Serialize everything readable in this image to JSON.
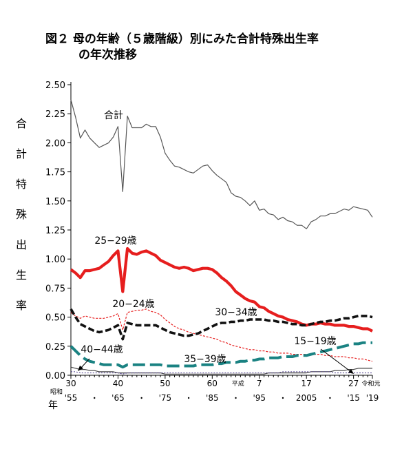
{
  "title": {
    "line1": "図２ 母の年齢（５歳階級）別にみた合計特殊出生率",
    "line2": "の年次推移"
  },
  "chart_data": {
    "type": "line",
    "title": "図２ 母の年齢（５歳階級）別にみた合計特殊出生率の年次推移",
    "ylabel": "合計特殊出生率",
    "ylabel_chars": [
      "合",
      "計",
      "特",
      "殊",
      "出",
      "生",
      "率"
    ],
    "xlabel": "年",
    "ylim": [
      0,
      2.5
    ],
    "xlim": [
      1955,
      2019
    ],
    "y_ticks": [
      "0.00",
      "0.25",
      "0.50",
      "0.75",
      "1.00",
      "1.25",
      "1.50",
      "1.75",
      "2.00",
      "2.25",
      "2.50"
    ],
    "x_ticks": [
      {
        "year": 1955,
        "era": "昭和",
        "top": "30",
        "bottom": "'55"
      },
      {
        "year": 1965,
        "era": "",
        "top": "40",
        "bottom": "'65"
      },
      {
        "year": 1975,
        "era": "",
        "top": "50",
        "bottom": "'75"
      },
      {
        "year": 1985,
        "era": "",
        "top": "60",
        "bottom": "'85"
      },
      {
        "year": 1995,
        "era": "平成",
        "top": "7",
        "bottom": "'95"
      },
      {
        "year": 2005,
        "era": "",
        "top": "17",
        "bottom": "2005"
      },
      {
        "year": 2015,
        "era": "",
        "top": "27",
        "bottom": "'15"
      },
      {
        "year": 2019,
        "era": "令和元",
        "top": "",
        "bottom": "'19"
      }
    ],
    "x": [
      1955,
      1956,
      1957,
      1958,
      1959,
      1960,
      1961,
      1962,
      1963,
      1964,
      1965,
      1966,
      1967,
      1968,
      1969,
      1970,
      1971,
      1972,
      1973,
      1974,
      1975,
      1976,
      1977,
      1978,
      1979,
      1980,
      1981,
      1982,
      1983,
      1984,
      1985,
      1986,
      1987,
      1988,
      1989,
      1990,
      1991,
      1992,
      1993,
      1994,
      1995,
      1996,
      1997,
      1998,
      1999,
      2000,
      2001,
      2002,
      2003,
      2004,
      2005,
      2006,
      2007,
      2008,
      2009,
      2010,
      2011,
      2012,
      2013,
      2014,
      2015,
      2016,
      2017,
      2018,
      2019
    ],
    "series": [
      {
        "name": "合計",
        "label": "合計",
        "color": "#555555",
        "values": [
          2.37,
          2.22,
          2.04,
          2.11,
          2.04,
          2.0,
          1.96,
          1.98,
          2.0,
          2.05,
          2.14,
          1.58,
          2.23,
          2.13,
          2.13,
          2.13,
          2.16,
          2.14,
          2.14,
          2.05,
          1.91,
          1.85,
          1.8,
          1.79,
          1.77,
          1.75,
          1.74,
          1.77,
          1.8,
          1.81,
          1.76,
          1.72,
          1.69,
          1.66,
          1.57,
          1.54,
          1.53,
          1.5,
          1.46,
          1.5,
          1.42,
          1.43,
          1.39,
          1.38,
          1.34,
          1.36,
          1.33,
          1.32,
          1.29,
          1.29,
          1.26,
          1.32,
          1.34,
          1.37,
          1.37,
          1.39,
          1.39,
          1.41,
          1.43,
          1.42,
          1.45,
          1.44,
          1.43,
          1.42,
          1.36
        ]
      },
      {
        "name": "25-29歳",
        "label": "25−29歳",
        "color": "#e61e1e",
        "values": [
          0.91,
          0.88,
          0.84,
          0.9,
          0.9,
          0.91,
          0.92,
          0.95,
          0.98,
          1.03,
          1.07,
          0.72,
          1.09,
          1.05,
          1.04,
          1.06,
          1.07,
          1.05,
          1.03,
          0.99,
          0.97,
          0.95,
          0.93,
          0.92,
          0.93,
          0.92,
          0.9,
          0.91,
          0.92,
          0.92,
          0.91,
          0.88,
          0.84,
          0.81,
          0.77,
          0.72,
          0.69,
          0.66,
          0.64,
          0.63,
          0.59,
          0.58,
          0.55,
          0.53,
          0.51,
          0.5,
          0.48,
          0.47,
          0.46,
          0.44,
          0.43,
          0.44,
          0.44,
          0.45,
          0.44,
          0.44,
          0.43,
          0.43,
          0.43,
          0.42,
          0.42,
          0.41,
          0.4,
          0.4,
          0.38
        ]
      },
      {
        "name": "20-24歳",
        "label": "20−24歳",
        "color": "#e61e1e",
        "values": [
          0.54,
          0.51,
          0.49,
          0.51,
          0.5,
          0.49,
          0.49,
          0.49,
          0.5,
          0.51,
          0.53,
          0.39,
          0.54,
          0.55,
          0.56,
          0.56,
          0.57,
          0.55,
          0.54,
          0.52,
          0.48,
          0.45,
          0.42,
          0.4,
          0.39,
          0.37,
          0.36,
          0.35,
          0.34,
          0.33,
          0.32,
          0.31,
          0.29,
          0.28,
          0.26,
          0.25,
          0.24,
          0.23,
          0.22,
          0.22,
          0.21,
          0.21,
          0.2,
          0.2,
          0.19,
          0.19,
          0.19,
          0.18,
          0.18,
          0.18,
          0.18,
          0.18,
          0.18,
          0.18,
          0.17,
          0.17,
          0.16,
          0.16,
          0.16,
          0.15,
          0.15,
          0.14,
          0.14,
          0.13,
          0.12
        ]
      },
      {
        "name": "30-34歳",
        "label": "30−34歳",
        "color": "#111111",
        "values": [
          0.57,
          0.5,
          0.44,
          0.42,
          0.4,
          0.38,
          0.37,
          0.38,
          0.39,
          0.41,
          0.43,
          0.31,
          0.45,
          0.44,
          0.43,
          0.43,
          0.43,
          0.43,
          0.43,
          0.41,
          0.39,
          0.37,
          0.36,
          0.35,
          0.34,
          0.34,
          0.35,
          0.36,
          0.38,
          0.4,
          0.42,
          0.44,
          0.45,
          0.45,
          0.46,
          0.46,
          0.47,
          0.47,
          0.48,
          0.48,
          0.48,
          0.48,
          0.47,
          0.47,
          0.46,
          0.46,
          0.45,
          0.44,
          0.44,
          0.43,
          0.43,
          0.44,
          0.45,
          0.46,
          0.46,
          0.47,
          0.47,
          0.48,
          0.49,
          0.49,
          0.5,
          0.51,
          0.51,
          0.51,
          0.5
        ]
      },
      {
        "name": "35-39歳",
        "label": "35−39歳",
        "color": "#1a8282",
        "values": [
          0.25,
          0.21,
          0.17,
          0.14,
          0.12,
          0.11,
          0.1,
          0.09,
          0.09,
          0.09,
          0.09,
          0.07,
          0.09,
          0.09,
          0.09,
          0.09,
          0.09,
          0.09,
          0.09,
          0.09,
          0.08,
          0.08,
          0.08,
          0.08,
          0.08,
          0.08,
          0.08,
          0.09,
          0.09,
          0.09,
          0.09,
          0.1,
          0.1,
          0.11,
          0.11,
          0.11,
          0.12,
          0.12,
          0.13,
          0.13,
          0.14,
          0.14,
          0.15,
          0.15,
          0.15,
          0.16,
          0.16,
          0.16,
          0.17,
          0.17,
          0.17,
          0.18,
          0.19,
          0.2,
          0.21,
          0.22,
          0.23,
          0.24,
          0.25,
          0.26,
          0.27,
          0.27,
          0.28,
          0.28,
          0.28
        ]
      },
      {
        "name": "40-44歳",
        "label": "40−44歳",
        "color": "#444444",
        "values": [
          0.07,
          0.06,
          0.05,
          0.05,
          0.04,
          0.04,
          0.03,
          0.03,
          0.03,
          0.03,
          0.02,
          0.02,
          0.02,
          0.02,
          0.02,
          0.02,
          0.02,
          0.02,
          0.02,
          0.02,
          0.01,
          0.01,
          0.01,
          0.01,
          0.01,
          0.01,
          0.01,
          0.01,
          0.01,
          0.01,
          0.01,
          0.01,
          0.01,
          0.01,
          0.01,
          0.01,
          0.01,
          0.01,
          0.01,
          0.01,
          0.01,
          0.01,
          0.02,
          0.02,
          0.02,
          0.02,
          0.02,
          0.02,
          0.02,
          0.02,
          0.02,
          0.03,
          0.03,
          0.03,
          0.03,
          0.03,
          0.04,
          0.04,
          0.04,
          0.05,
          0.05,
          0.06,
          0.06,
          0.06,
          0.06
        ]
      },
      {
        "name": "15-19歳",
        "label": "15−19歳",
        "color": "#4b3a8a",
        "values": [
          0.03,
          0.03,
          0.02,
          0.02,
          0.02,
          0.02,
          0.02,
          0.02,
          0.02,
          0.02,
          0.02,
          0.01,
          0.02,
          0.02,
          0.02,
          0.02,
          0.02,
          0.02,
          0.02,
          0.02,
          0.02,
          0.02,
          0.02,
          0.02,
          0.02,
          0.02,
          0.02,
          0.02,
          0.02,
          0.02,
          0.02,
          0.02,
          0.02,
          0.02,
          0.02,
          0.02,
          0.02,
          0.02,
          0.02,
          0.02,
          0.02,
          0.02,
          0.02,
          0.02,
          0.02,
          0.03,
          0.03,
          0.03,
          0.03,
          0.03,
          0.03,
          0.03,
          0.03,
          0.03,
          0.03,
          0.03,
          0.02,
          0.02,
          0.02,
          0.02,
          0.02,
          0.02,
          0.02,
          0.02,
          0.02
        ]
      }
    ]
  }
}
